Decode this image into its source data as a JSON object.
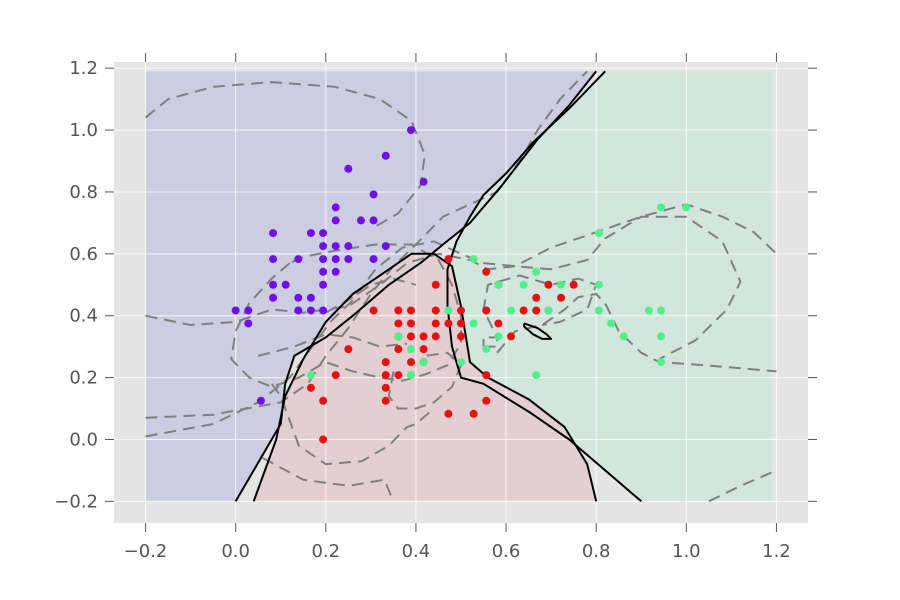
{
  "chart_data": {
    "type": "scatter",
    "title": "",
    "xlabel": "",
    "ylabel": "",
    "xlim": [
      -0.27,
      1.27
    ],
    "ylim": [
      -0.27,
      1.22
    ],
    "grid": true,
    "x_ticks": [
      -0.2,
      0.0,
      0.2,
      0.4,
      0.6,
      0.8,
      1.0,
      1.2
    ],
    "x_tick_labels": [
      "−0.2",
      "0.0",
      "0.2",
      "0.4",
      "0.6",
      "0.8",
      "1.0",
      "1.2"
    ],
    "y_ticks": [
      -0.2,
      0.0,
      0.2,
      0.4,
      0.6,
      0.8,
      1.0,
      1.2
    ],
    "y_tick_labels": [
      "−0.2",
      "0.0",
      "0.2",
      "0.4",
      "0.6",
      "0.8",
      "1.0",
      "1.2"
    ],
    "colors": {
      "frame_bg": "#e5e5e5",
      "grid": "#ffffff",
      "region_purple": "#cdcde2",
      "region_red": "#e3cfd2",
      "region_green": "#d2e6dd",
      "boundary": "#000000",
      "contour": "#808080"
    },
    "series": [
      {
        "color": "#7010e8",
        "points": [
          [
            0.0,
            0.417
          ],
          [
            0.028,
            0.417
          ],
          [
            0.028,
            0.375
          ],
          [
            0.056,
            0.125
          ],
          [
            0.083,
            0.667
          ],
          [
            0.083,
            0.583
          ],
          [
            0.083,
            0.5
          ],
          [
            0.083,
            0.458
          ],
          [
            0.111,
            0.5
          ],
          [
            0.139,
            0.583
          ],
          [
            0.139,
            0.458
          ],
          [
            0.139,
            0.417
          ],
          [
            0.167,
            0.667
          ],
          [
            0.167,
            0.458
          ],
          [
            0.167,
            0.417
          ],
          [
            0.194,
            0.667
          ],
          [
            0.194,
            0.625
          ],
          [
            0.194,
            0.583
          ],
          [
            0.194,
            0.542
          ],
          [
            0.194,
            0.5
          ],
          [
            0.194,
            0.417
          ],
          [
            0.222,
            0.75
          ],
          [
            0.222,
            0.708
          ],
          [
            0.222,
            0.625
          ],
          [
            0.222,
            0.583
          ],
          [
            0.222,
            0.542
          ],
          [
            0.25,
            0.875
          ],
          [
            0.25,
            0.625
          ],
          [
            0.25,
            0.583
          ],
          [
            0.278,
            0.708
          ],
          [
            0.306,
            0.792
          ],
          [
            0.306,
            0.708
          ],
          [
            0.306,
            0.583
          ],
          [
            0.333,
            0.917
          ],
          [
            0.333,
            0.625
          ],
          [
            0.389,
            1.0
          ],
          [
            0.417,
            0.833
          ]
        ]
      },
      {
        "color": "#e81010",
        "points": [
          [
            0.167,
            0.167
          ],
          [
            0.194,
            0.125
          ],
          [
            0.194,
            0.0
          ],
          [
            0.222,
            0.208
          ],
          [
            0.25,
            0.292
          ],
          [
            0.306,
            0.417
          ],
          [
            0.333,
            0.25
          ],
          [
            0.333,
            0.208
          ],
          [
            0.333,
            0.167
          ],
          [
            0.333,
            0.125
          ],
          [
            0.361,
            0.417
          ],
          [
            0.361,
            0.375
          ],
          [
            0.361,
            0.333
          ],
          [
            0.361,
            0.292
          ],
          [
            0.361,
            0.208
          ],
          [
            0.389,
            0.417
          ],
          [
            0.389,
            0.375
          ],
          [
            0.389,
            0.333
          ],
          [
            0.389,
            0.25
          ],
          [
            0.417,
            0.333
          ],
          [
            0.417,
            0.292
          ],
          [
            0.417,
            0.25
          ],
          [
            0.444,
            0.5
          ],
          [
            0.444,
            0.417
          ],
          [
            0.444,
            0.375
          ],
          [
            0.444,
            0.333
          ],
          [
            0.472,
            0.583
          ],
          [
            0.472,
            0.375
          ],
          [
            0.472,
            0.083
          ],
          [
            0.5,
            0.417
          ],
          [
            0.5,
            0.375
          ],
          [
            0.5,
            0.333
          ],
          [
            0.528,
            0.083
          ],
          [
            0.556,
            0.542
          ],
          [
            0.556,
            0.417
          ],
          [
            0.556,
            0.208
          ],
          [
            0.556,
            0.125
          ],
          [
            0.583,
            0.5
          ],
          [
            0.583,
            0.375
          ],
          [
            0.611,
            0.333
          ],
          [
            0.639,
            0.417
          ],
          [
            0.667,
            0.458
          ],
          [
            0.667,
            0.417
          ],
          [
            0.694,
            0.5
          ],
          [
            0.694,
            0.417
          ],
          [
            0.722,
            0.458
          ],
          [
            0.75,
            0.5
          ]
        ]
      },
      {
        "color": "#50f08c",
        "points": [
          [
            0.167,
            0.208
          ],
          [
            0.361,
            0.333
          ],
          [
            0.389,
            0.292
          ],
          [
            0.389,
            0.208
          ],
          [
            0.417,
            0.25
          ],
          [
            0.472,
            0.417
          ],
          [
            0.5,
            0.25
          ],
          [
            0.528,
            0.583
          ],
          [
            0.528,
            0.375
          ],
          [
            0.556,
            0.292
          ],
          [
            0.583,
            0.5
          ],
          [
            0.583,
            0.333
          ],
          [
            0.611,
            0.417
          ],
          [
            0.639,
            0.5
          ],
          [
            0.667,
            0.542
          ],
          [
            0.667,
            0.208
          ],
          [
            0.694,
            0.417
          ],
          [
            0.722,
            0.5
          ],
          [
            0.806,
            0.667
          ],
          [
            0.806,
            0.5
          ],
          [
            0.806,
            0.417
          ],
          [
            0.833,
            0.375
          ],
          [
            0.861,
            0.333
          ],
          [
            0.917,
            0.417
          ],
          [
            0.944,
            0.75
          ],
          [
            0.944,
            0.417
          ],
          [
            0.944,
            0.333
          ],
          [
            0.944,
            0.25
          ],
          [
            1.0,
            0.75
          ]
        ]
      }
    ],
    "boundaries": [
      [
        [
          0.0,
          -0.2
        ],
        [
          0.06,
          -0.05
        ],
        [
          0.1,
          0.05
        ],
        [
          0.11,
          0.18
        ],
        [
          0.13,
          0.27
        ],
        [
          0.2,
          0.33
        ],
        [
          0.26,
          0.4
        ],
        [
          0.34,
          0.5
        ],
        [
          0.41,
          0.57
        ],
        [
          0.46,
          0.63
        ],
        [
          0.52,
          0.7
        ],
        [
          0.59,
          0.82
        ],
        [
          0.67,
          0.97
        ],
        [
          0.74,
          1.08
        ],
        [
          0.8,
          1.19
        ]
      ],
      [
        [
          0.04,
          -0.2
        ],
        [
          0.09,
          0.0
        ],
        [
          0.11,
          0.14
        ],
        [
          0.15,
          0.26
        ],
        [
          0.2,
          0.38
        ],
        [
          0.26,
          0.47
        ],
        [
          0.33,
          0.54
        ],
        [
          0.39,
          0.6
        ],
        [
          0.44,
          0.6
        ],
        [
          0.48,
          0.56
        ],
        [
          0.5,
          0.43
        ],
        [
          0.51,
          0.34
        ],
        [
          0.52,
          0.25
        ],
        [
          0.56,
          0.2
        ],
        [
          0.65,
          0.13
        ],
        [
          0.73,
          0.04
        ],
        [
          0.78,
          -0.08
        ],
        [
          0.8,
          -0.2
        ]
      ],
      [
        [
          0.9,
          -0.2
        ],
        [
          0.82,
          -0.1
        ],
        [
          0.74,
          0.0
        ],
        [
          0.65,
          0.09
        ],
        [
          0.55,
          0.18
        ],
        [
          0.5,
          0.2
        ],
        [
          0.48,
          0.3
        ],
        [
          0.47,
          0.43
        ],
        [
          0.47,
          0.55
        ],
        [
          0.49,
          0.64
        ],
        [
          0.52,
          0.72
        ],
        [
          0.55,
          0.79
        ],
        [
          0.6,
          0.86
        ],
        [
          0.66,
          0.96
        ],
        [
          0.74,
          1.07
        ],
        [
          0.82,
          1.19
        ]
      ],
      [
        [
          0.64,
          0.375
        ],
        [
          0.67,
          0.36
        ],
        [
          0.69,
          0.34
        ],
        [
          0.7,
          0.325
        ],
        [
          0.68,
          0.325
        ],
        [
          0.66,
          0.34
        ],
        [
          0.64,
          0.365
        ],
        [
          0.64,
          0.375
        ]
      ]
    ],
    "contours": [
      [
        [
          -0.2,
          1.04
        ],
        [
          -0.15,
          1.1
        ],
        [
          -0.05,
          1.14
        ],
        [
          0.08,
          1.155
        ],
        [
          0.22,
          1.14
        ],
        [
          0.32,
          1.1
        ],
        [
          0.39,
          1.03
        ],
        [
          0.42,
          0.92
        ],
        [
          0.41,
          0.82
        ],
        [
          0.36,
          0.73
        ],
        [
          0.3,
          0.68
        ]
      ],
      [
        [
          -0.2,
          0.07
        ],
        [
          -0.05,
          0.08
        ],
        [
          0.1,
          0.12
        ],
        [
          0.16,
          0.18
        ],
        [
          0.2,
          0.27
        ],
        [
          0.25,
          0.36
        ],
        [
          0.3,
          0.47
        ],
        [
          0.35,
          0.56
        ],
        [
          0.4,
          0.63
        ],
        [
          0.46,
          0.72
        ],
        [
          0.52,
          0.76
        ],
        [
          0.58,
          0.8
        ],
        [
          0.63,
          0.9
        ],
        [
          0.67,
          1.0
        ],
        [
          0.72,
          1.1
        ],
        [
          0.78,
          1.19
        ]
      ],
      [
        [
          -0.2,
          0.01
        ],
        [
          -0.05,
          0.05
        ],
        [
          0.05,
          0.12
        ],
        [
          0.12,
          0.2
        ],
        [
          0.17,
          0.3
        ],
        [
          0.21,
          0.38
        ],
        [
          0.26,
          0.45
        ],
        [
          0.31,
          0.55
        ],
        [
          0.37,
          0.62
        ],
        [
          0.44,
          0.64
        ],
        [
          0.5,
          0.6
        ],
        [
          0.55,
          0.57
        ],
        [
          0.62,
          0.56
        ],
        [
          0.7,
          0.55
        ],
        [
          0.78,
          0.58
        ],
        [
          0.82,
          0.65
        ],
        [
          0.9,
          0.72
        ],
        [
          1.0,
          0.72
        ],
        [
          1.08,
          0.64
        ],
        [
          1.12,
          0.51
        ],
        [
          1.09,
          0.42
        ],
        [
          1.02,
          0.32
        ],
        [
          0.94,
          0.26
        ]
      ],
      [
        [
          -0.2,
          0.4
        ],
        [
          -0.1,
          0.37
        ],
        [
          0.0,
          0.38
        ],
        [
          0.08,
          0.42
        ],
        [
          0.15,
          0.41
        ],
        [
          0.25,
          0.43
        ],
        [
          0.32,
          0.5
        ],
        [
          0.38,
          0.57
        ],
        [
          0.45,
          0.6
        ],
        [
          0.52,
          0.58
        ],
        [
          0.56,
          0.55
        ],
        [
          0.62,
          0.56
        ],
        [
          0.7,
          0.62
        ],
        [
          0.8,
          0.67
        ],
        [
          0.9,
          0.72
        ],
        [
          1.0,
          0.76
        ],
        [
          1.08,
          0.72
        ],
        [
          1.15,
          0.67
        ],
        [
          1.2,
          0.6
        ]
      ],
      [
        [
          0.12,
          0.57
        ],
        [
          0.08,
          0.52
        ],
        [
          0.03,
          0.44
        ],
        [
          0.0,
          0.35
        ],
        [
          -0.01,
          0.26
        ],
        [
          0.03,
          0.2
        ],
        [
          0.08,
          0.17
        ],
        [
          0.14,
          0.2
        ],
        [
          0.2,
          0.25
        ],
        [
          0.26,
          0.22
        ],
        [
          0.32,
          0.2
        ],
        [
          0.37,
          0.19
        ],
        [
          0.42,
          0.21
        ],
        [
          0.47,
          0.24
        ],
        [
          0.5,
          0.31
        ],
        [
          0.5,
          0.4
        ],
        [
          0.48,
          0.5
        ],
        [
          0.45,
          0.58
        ],
        [
          0.39,
          0.63
        ],
        [
          0.31,
          0.63
        ],
        [
          0.22,
          0.61
        ],
        [
          0.15,
          0.59
        ],
        [
          0.12,
          0.57
        ]
      ],
      [
        [
          0.06,
          -0.06
        ],
        [
          0.15,
          -0.13
        ],
        [
          0.25,
          -0.15
        ],
        [
          0.33,
          -0.13
        ],
        [
          0.35,
          -0.2
        ]
      ],
      [
        [
          0.58,
          0.28
        ],
        [
          0.62,
          0.35
        ],
        [
          0.68,
          0.37
        ],
        [
          0.73,
          0.42
        ],
        [
          0.76,
          0.46
        ],
        [
          0.8,
          0.47
        ],
        [
          0.82,
          0.44
        ],
        [
          0.85,
          0.35
        ],
        [
          0.9,
          0.28
        ],
        [
          0.94,
          0.25
        ],
        [
          1.04,
          0.24
        ],
        [
          1.12,
          0.23
        ],
        [
          1.2,
          0.22
        ]
      ],
      [
        [
          0.57,
          0.36
        ],
        [
          0.55,
          0.42
        ],
        [
          0.56,
          0.5
        ],
        [
          0.63,
          0.53
        ],
        [
          0.7,
          0.5
        ],
        [
          0.76,
          0.52
        ],
        [
          0.8,
          0.5
        ],
        [
          0.78,
          0.42
        ],
        [
          0.72,
          0.38
        ],
        [
          0.68,
          0.37
        ]
      ],
      [
        [
          0.2,
          0.41
        ],
        [
          0.25,
          0.45
        ],
        [
          0.3,
          0.5
        ],
        [
          0.35,
          0.52
        ],
        [
          0.4,
          0.5
        ]
      ],
      [
        [
          0.05,
          0.27
        ],
        [
          0.13,
          0.3
        ],
        [
          0.2,
          0.34
        ],
        [
          0.26,
          0.33
        ],
        [
          0.32,
          0.3
        ],
        [
          0.38,
          0.31
        ]
      ],
      [
        [
          0.35,
          0.22
        ],
        [
          0.34,
          0.14
        ],
        [
          0.36,
          0.1
        ],
        [
          0.4,
          0.1
        ],
        [
          0.44,
          0.12
        ],
        [
          0.48,
          0.17
        ],
        [
          0.5,
          0.24
        ],
        [
          0.47,
          0.28
        ],
        [
          0.42,
          0.27
        ]
      ],
      [
        [
          0.08,
          0.18
        ],
        [
          0.1,
          0.14
        ],
        [
          0.12,
          0.06
        ],
        [
          0.14,
          -0.02
        ],
        [
          0.2,
          -0.08
        ],
        [
          0.28,
          -0.07
        ],
        [
          0.34,
          -0.02
        ],
        [
          0.38,
          0.04
        ],
        [
          0.4,
          0.05
        ],
        [
          0.44,
          0.1
        ]
      ],
      [
        [
          1.05,
          -0.2
        ],
        [
          1.12,
          -0.15
        ],
        [
          1.2,
          -0.1
        ]
      ],
      [
        [
          0.55,
          0.3
        ],
        [
          0.58,
          0.3
        ],
        [
          0.58,
          0.33
        ],
        [
          0.55,
          0.33
        ],
        [
          0.55,
          0.3
        ]
      ]
    ]
  }
}
